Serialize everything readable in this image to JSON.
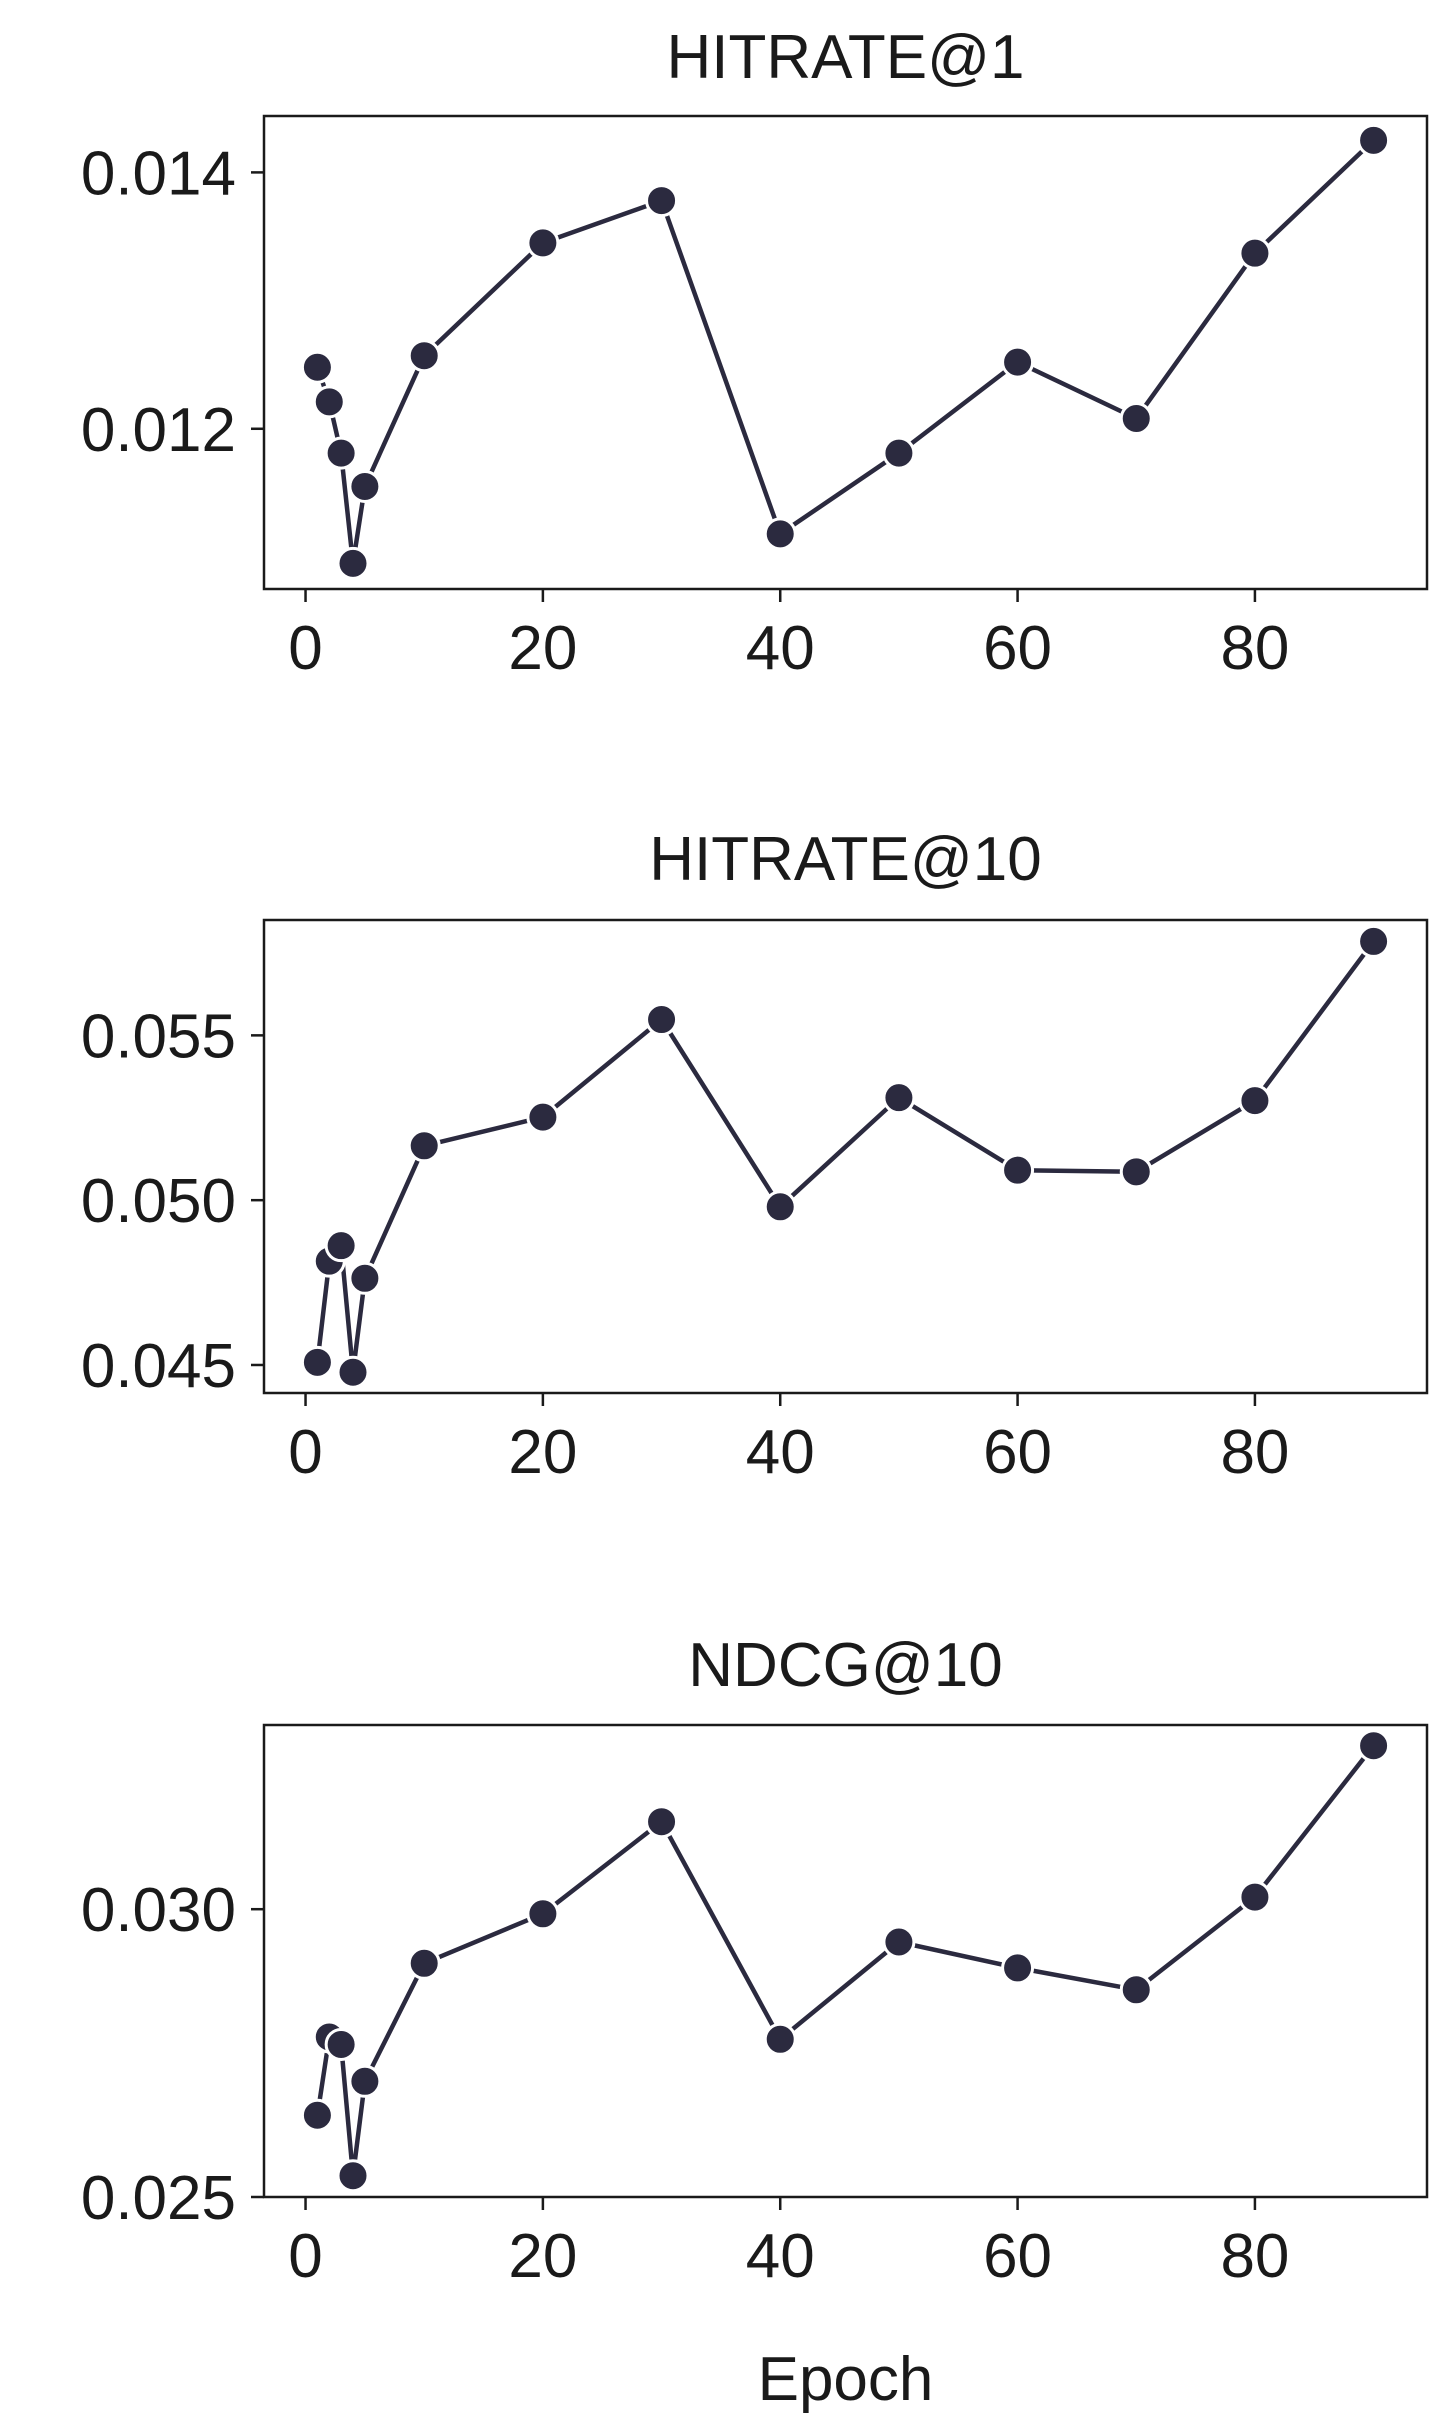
{
  "chart_data": [
    {
      "type": "line",
      "title": "HITRATE@1",
      "xlabel": "",
      "ylabel": "",
      "x": [
        1,
        2,
        3,
        4,
        5,
        10,
        20,
        30,
        40,
        50,
        60,
        70,
        80,
        90
      ],
      "values": [
        0.01248,
        0.01221,
        0.01181,
        0.01095,
        0.01155,
        0.01257,
        0.01345,
        0.01378,
        0.01118,
        0.01181,
        0.01252,
        0.01208,
        0.01337,
        0.01425
      ],
      "xlim": [
        -3.5,
        94.5
      ],
      "ylim": [
        0.01075,
        0.01444
      ],
      "xticks": [
        0,
        20,
        40,
        60,
        80
      ],
      "xtick_labels": [
        "0",
        "20",
        "40",
        "60",
        "80"
      ],
      "yticks": [
        0.012,
        0.014
      ],
      "ytick_labels": [
        "0.012",
        "0.014"
      ],
      "color": "#2b2a3f",
      "grid": false
    },
    {
      "type": "line",
      "title": "HITRATE@10",
      "xlabel": "",
      "ylabel": "",
      "x": [
        1,
        2,
        3,
        4,
        5,
        10,
        20,
        30,
        40,
        50,
        60,
        70,
        80,
        90
      ],
      "values": [
        0.04508,
        0.04815,
        0.04862,
        0.04478,
        0.04763,
        0.05165,
        0.05252,
        0.05548,
        0.0498,
        0.05311,
        0.05091,
        0.05086,
        0.05302,
        0.05785
      ],
      "xlim": [
        -3.5,
        94.5
      ],
      "ylim": [
        0.04415,
        0.0585
      ],
      "xticks": [
        0,
        20,
        40,
        60,
        80
      ],
      "xtick_labels": [
        "0",
        "20",
        "40",
        "60",
        "80"
      ],
      "yticks": [
        0.045,
        0.05,
        0.055
      ],
      "ytick_labels": [
        "0.045",
        "0.050",
        "0.055"
      ],
      "color": "#2b2a3f",
      "grid": false
    },
    {
      "type": "line",
      "title": "NDCG@10",
      "xlabel": "Epoch",
      "ylabel": "",
      "x": [
        1,
        2,
        3,
        4,
        5,
        10,
        20,
        30,
        40,
        50,
        60,
        70,
        80,
        90
      ],
      "values": [
        0.02642,
        0.02778,
        0.02765,
        0.02537,
        0.02701,
        0.02906,
        0.02992,
        0.03152,
        0.02774,
        0.02943,
        0.02898,
        0.0286,
        0.03021,
        0.03284
      ],
      "xlim": [
        -3.5,
        94.5
      ],
      "ylim": [
        0.025,
        0.0332
      ],
      "xticks": [
        0,
        20,
        40,
        60,
        80
      ],
      "xtick_labels": [
        "0",
        "20",
        "40",
        "60",
        "80"
      ],
      "yticks": [
        0.025,
        0.03
      ],
      "ytick_labels": [
        "0.025",
        "0.030"
      ],
      "color": "#2b2a3f",
      "grid": false
    }
  ]
}
